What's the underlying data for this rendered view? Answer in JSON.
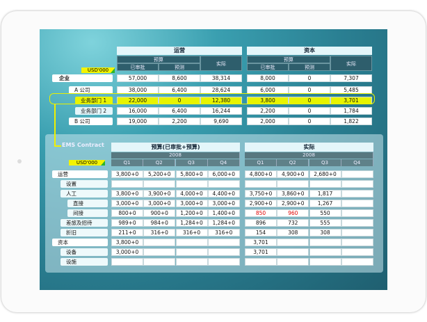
{
  "unit": "USD'000",
  "top": {
    "groups": [
      {
        "title": "运营",
        "budget": "预算",
        "approved": "已审批",
        "forecast": "预测",
        "actual": "实际"
      },
      {
        "title": "资本",
        "budget": "预算",
        "approved": "已审批",
        "forecast": "预测",
        "actual": "实际"
      }
    ],
    "rows": [
      {
        "label": "企业",
        "values": [
          "57,000",
          "8,600",
          "38,314",
          "8,000",
          "0",
          "7,307"
        ]
      },
      {
        "label": "A 公司",
        "values": [
          "38,000",
          "6,400",
          "28,624",
          "6,000",
          "0",
          "5,485"
        ]
      },
      {
        "label": "业务部门 1",
        "values": [
          "22,000",
          "0",
          "12,380",
          "3,800",
          "0",
          "3,701"
        ],
        "highlight": true
      },
      {
        "label": "业务部门 2",
        "values": [
          "16,000",
          "6,400",
          "16,244",
          "2,200",
          "0",
          "1,784"
        ]
      },
      {
        "label": "B 公司",
        "values": [
          "19,000",
          "2,200",
          "9,690",
          "2,000",
          "0",
          "1,822"
        ]
      }
    ]
  },
  "ems": {
    "title": "EMS Contract",
    "budget_title": "预算(已审批+预算)",
    "actual_title": "实际",
    "year": "2008",
    "quarters": [
      "Q1",
      "Q2",
      "Q3",
      "Q4"
    ],
    "rows": [
      {
        "label": "运营",
        "indent": 0,
        "values": [
          "3,800+0",
          "5,200+0",
          "5,800+0",
          "6,000+0",
          "4,800+0",
          "4,900+0",
          "2,680+0",
          ""
        ]
      },
      {
        "label": "设置",
        "indent": 1,
        "values": [
          "",
          "",
          "",
          "",
          "",
          "",
          "",
          ""
        ]
      },
      {
        "label": "人工",
        "indent": 1,
        "values": [
          "3,800+0",
          "3,900+0",
          "4,000+0",
          "4,400+0",
          "3,750+0",
          "3,860+0",
          "1,817",
          ""
        ]
      },
      {
        "label": "直接",
        "indent": 2,
        "values": [
          "3,000+0",
          "3,000+0",
          "3,000+0",
          "3,000+0",
          "2,900+0",
          "2,900+0",
          "1,267",
          ""
        ]
      },
      {
        "label": "间接",
        "indent": 2,
        "values": [
          "800+0",
          "900+0",
          "1,200+0",
          "1,400+0",
          "850",
          "960",
          "550",
          ""
        ],
        "red": [
          4,
          5
        ]
      },
      {
        "label": "差旅及招待",
        "indent": 1,
        "values": [
          "989+0",
          "984+0",
          "1,284+0",
          "1,284+0",
          "896",
          "732",
          "555",
          ""
        ]
      },
      {
        "label": "折旧",
        "indent": 1,
        "values": [
          "211+0",
          "316+0",
          "316+0",
          "316+0",
          "154",
          "308",
          "308",
          ""
        ]
      },
      {
        "label": "资本",
        "indent": 0,
        "values": [
          "3,800+0",
          "",
          "",
          "",
          "3,701",
          "",
          "",
          ""
        ]
      },
      {
        "label": "设备",
        "indent": 1,
        "values": [
          "3,000+0",
          "",
          "",
          "",
          "3,701",
          "",
          "",
          ""
        ]
      },
      {
        "label": "设施",
        "indent": 1,
        "values": [
          "",
          "",
          "",
          "",
          "",
          "",
          "",
          ""
        ]
      }
    ]
  },
  "colors": {
    "highlight": "#e8f400",
    "red": "#e00000",
    "header_dark": "#2e5e6c"
  }
}
